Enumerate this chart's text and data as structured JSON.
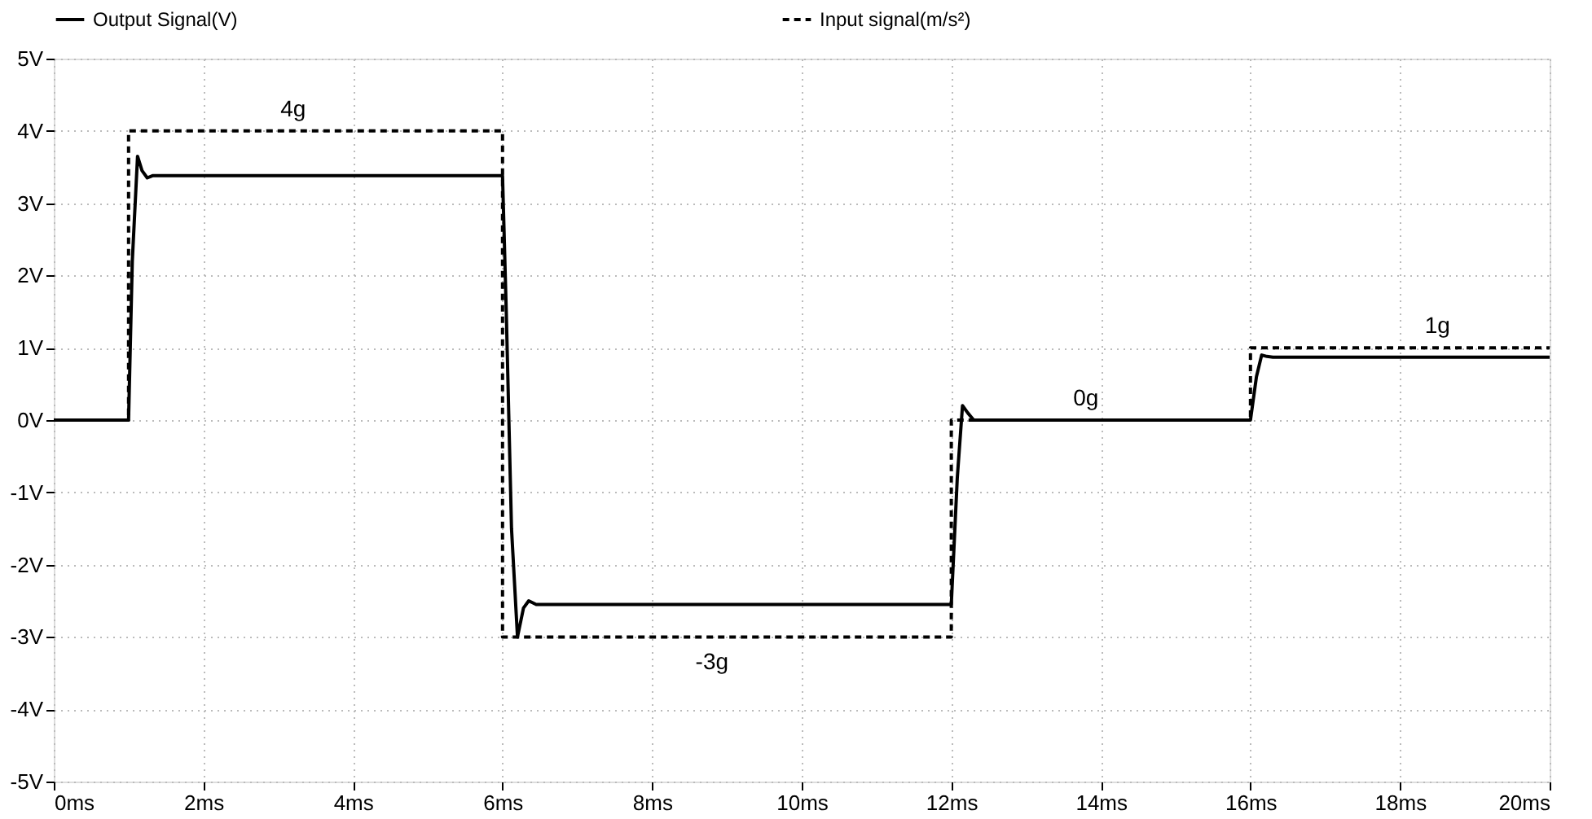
{
  "chart_data": {
    "type": "line",
    "x": [
      0,
      1.0,
      1.05,
      1.12,
      1.18,
      1.25,
      1.32,
      1.4,
      6.0,
      6.05,
      6.12,
      6.2,
      6.28,
      6.35,
      6.45,
      12.0,
      12.08,
      12.15,
      12.22,
      12.3,
      12.4,
      16.0,
      16.08,
      16.15,
      16.22,
      16.3,
      20.0
    ],
    "series": [
      {
        "name": "Output Signal(V)",
        "color": "#000000",
        "line_style": "solid",
        "values": [
          0,
          0,
          2.2,
          3.65,
          3.45,
          3.35,
          3.38,
          3.38,
          3.38,
          1.5,
          -1.5,
          -3.0,
          -2.6,
          -2.5,
          -2.55,
          -2.55,
          -0.8,
          0.2,
          0.1,
          0.0,
          0.0,
          0.0,
          0.6,
          0.9,
          0.88,
          0.87,
          0.87
        ]
      },
      {
        "name": "Input signal(m/s²)",
        "color": "#000000",
        "line_style": "dashed",
        "x": [
          0,
          1.0,
          1.0,
          6.0,
          6.0,
          12.0,
          12.0,
          16.0,
          16.0,
          20.0
        ],
        "values": [
          0,
          0,
          4,
          4,
          -3,
          -3,
          0,
          0,
          1,
          1
        ]
      }
    ],
    "xlim": [
      0,
      20
    ],
    "ylim": [
      -5,
      5
    ],
    "xticks": [
      {
        "value": 0,
        "label": "0ms"
      },
      {
        "value": 2,
        "label": "2ms"
      },
      {
        "value": 4,
        "label": "4ms"
      },
      {
        "value": 6,
        "label": "6ms"
      },
      {
        "value": 8,
        "label": "8ms"
      },
      {
        "value": 10,
        "label": "10ms"
      },
      {
        "value": 12,
        "label": "12ms"
      },
      {
        "value": 14,
        "label": "14ms"
      },
      {
        "value": 16,
        "label": "16ms"
      },
      {
        "value": 18,
        "label": "18ms"
      },
      {
        "value": 20,
        "label": "20ms"
      }
    ],
    "yticks": [
      {
        "value": -5,
        "label": "-5V"
      },
      {
        "value": -4,
        "label": "-4V"
      },
      {
        "value": -3,
        "label": "-3V"
      },
      {
        "value": -2,
        "label": "-2V"
      },
      {
        "value": -1,
        "label": "-1V"
      },
      {
        "value": 0,
        "label": "0V"
      },
      {
        "value": 1,
        "label": "1V"
      },
      {
        "value": 2,
        "label": "2V"
      },
      {
        "value": 3,
        "label": "3V"
      },
      {
        "value": 4,
        "label": "4V"
      },
      {
        "value": 5,
        "label": "5V"
      }
    ],
    "annotations": [
      {
        "text": "4g",
        "x": 3.2,
        "y": 4
      },
      {
        "text": "-3g",
        "x": 8.8,
        "y": -3
      },
      {
        "text": "0g",
        "x": 13.8,
        "y": 0
      },
      {
        "text": "1g",
        "x": 18.5,
        "y": 1
      }
    ],
    "grid": true,
    "legend": "top"
  }
}
